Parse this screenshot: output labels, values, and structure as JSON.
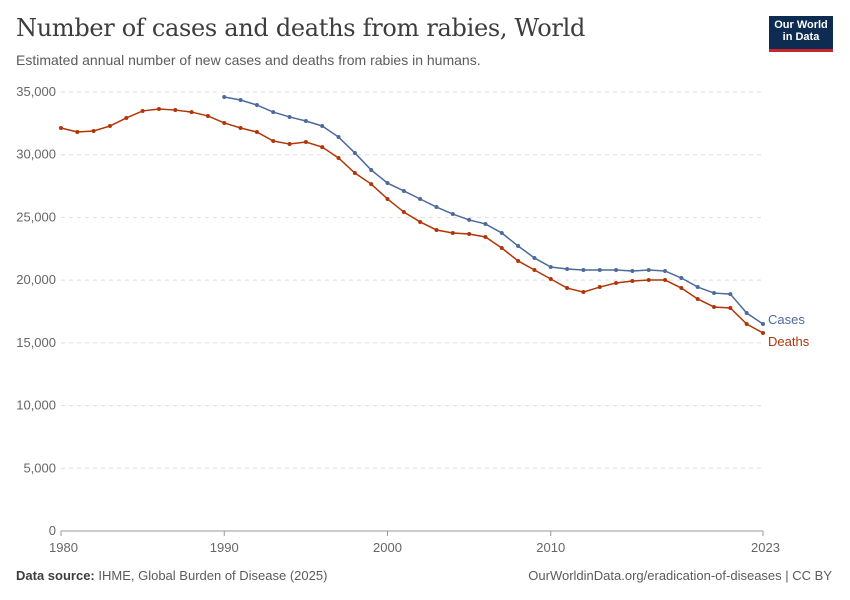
{
  "header": {
    "title": "Number of cases and deaths from rabies, World",
    "subtitle": "Estimated annual number of new cases and deaths from rabies in humans.",
    "logo": "Our World in Data"
  },
  "footer": {
    "source_label": "Data source:",
    "source": "IHME, Global Burden of Disease (2025)",
    "link": "OurWorldinData.org/eradication-of-diseases | CC BY"
  },
  "chart_data": {
    "type": "line",
    "title": "Number of cases and deaths from rabies, World",
    "xlim": [
      1980,
      2023
    ],
    "ylim": [
      0,
      35000
    ],
    "grid": "horizontal dashed",
    "x_ticks": [
      1980,
      1990,
      2000,
      2010,
      2023
    ],
    "y_ticks": [
      0,
      5000,
      10000,
      15000,
      20000,
      25000,
      30000,
      35000
    ],
    "y_tick_labels": [
      "0",
      "5,000",
      "10,000",
      "15,000",
      "20,000",
      "25,000",
      "30,000",
      "35,000"
    ],
    "legend": "inline-right",
    "series": [
      {
        "name": "Cases",
        "color": "#4c6a9c",
        "x_start": 1990,
        "values": [
          34600,
          34360,
          33960,
          33400,
          33010,
          32690,
          32290,
          31410,
          30140,
          28780,
          27740,
          27110,
          26470,
          25830,
          25270,
          24800,
          24480,
          23760,
          22720,
          21770,
          21050,
          20890,
          20810,
          20810,
          20810,
          20730,
          20810,
          20730,
          20170,
          19450,
          18970,
          18890,
          17380,
          16500
        ]
      },
      {
        "name": "Deaths",
        "color": "#b13507",
        "x_start": 1980,
        "values": [
          32130,
          31810,
          31890,
          32290,
          32930,
          33490,
          33640,
          33560,
          33400,
          33090,
          32530,
          32130,
          31810,
          31090,
          30850,
          31010,
          30610,
          29740,
          28540,
          27660,
          26470,
          25430,
          24640,
          24000,
          23760,
          23680,
          23440,
          22560,
          21530,
          20810,
          20090,
          19370,
          19050,
          19450,
          19770,
          19930,
          20010,
          20010,
          19370,
          18500,
          17860,
          17780,
          16500,
          15790
        ]
      }
    ]
  }
}
